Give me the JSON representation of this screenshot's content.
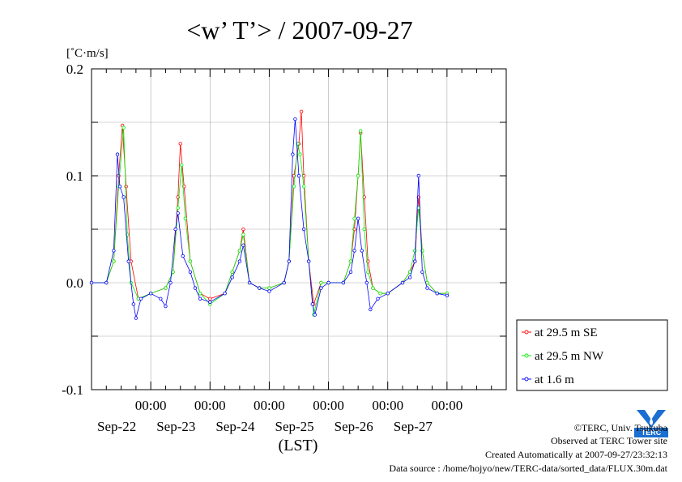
{
  "chart_data": {
    "type": "line",
    "title": "<w’ T’> / 2007-09-27",
    "ylabel": "[˚C·m/s]",
    "xlabel": "(LST)",
    "ylim": [
      -0.1,
      0.2
    ],
    "y_ticks": [
      "0.2",
      "0.1",
      "0.0",
      "-0.1"
    ],
    "x_range": [
      "2007-09-21T00:00",
      "2007-09-28T00:00"
    ],
    "x_tick_time_label": "00:00",
    "x_day_labels": [
      "Sep-22",
      "Sep-23",
      "Sep-24",
      "Sep-25",
      "Sep-26",
      "Sep-27"
    ],
    "grid": true,
    "legend_position": "right",
    "series": [
      {
        "name": "at 29.5 m SE",
        "color": "#ff0000",
        "points": [
          [
            "2007-09-21T00:00",
            0.0
          ],
          [
            "2007-09-21T06:00",
            0.0
          ],
          [
            "2007-09-21T09:00",
            0.02
          ],
          [
            "2007-09-21T11:00",
            0.1
          ],
          [
            "2007-09-21T12:30",
            0.147
          ],
          [
            "2007-09-21T14:00",
            0.09
          ],
          [
            "2007-09-21T16:00",
            0.02
          ],
          [
            "2007-09-21T19:00",
            -0.015
          ],
          [
            "2007-09-22T00:00",
            -0.01
          ],
          [
            "2007-09-22T06:00",
            -0.005
          ],
          [
            "2007-09-22T09:00",
            0.01
          ],
          [
            "2007-09-22T11:00",
            0.08
          ],
          [
            "2007-09-22T12:00",
            0.13
          ],
          [
            "2007-09-22T13:30",
            0.09
          ],
          [
            "2007-09-22T16:00",
            0.02
          ],
          [
            "2007-09-22T20:00",
            -0.01
          ],
          [
            "2007-09-23T00:00",
            -0.015
          ],
          [
            "2007-09-23T06:00",
            -0.01
          ],
          [
            "2007-09-23T09:00",
            0.01
          ],
          [
            "2007-09-23T12:00",
            0.03
          ],
          [
            "2007-09-23T13:30",
            0.05
          ],
          [
            "2007-09-23T16:00",
            0.0
          ],
          [
            "2007-09-23T20:00",
            -0.005
          ],
          [
            "2007-09-24T00:00",
            -0.005
          ],
          [
            "2007-09-24T06:00",
            0.0
          ],
          [
            "2007-09-24T08:00",
            0.02
          ],
          [
            "2007-09-24T10:00",
            0.1
          ],
          [
            "2007-09-24T12:00",
            0.13
          ],
          [
            "2007-09-24T13:00",
            0.16
          ],
          [
            "2007-09-24T14:00",
            0.1
          ],
          [
            "2007-09-24T16:00",
            0.02
          ],
          [
            "2007-09-24T18:00",
            -0.02
          ],
          [
            "2007-09-24T21:00",
            0.0
          ],
          [
            "2007-09-25T00:00",
            0.0
          ],
          [
            "2007-09-25T06:00",
            0.0
          ],
          [
            "2007-09-25T09:00",
            0.02
          ],
          [
            "2007-09-25T10:30",
            0.05
          ],
          [
            "2007-09-25T12:00",
            0.1
          ],
          [
            "2007-09-25T13:00",
            0.14
          ],
          [
            "2007-09-25T14:30",
            0.08
          ],
          [
            "2007-09-25T16:00",
            0.02
          ],
          [
            "2007-09-25T18:00",
            -0.005
          ],
          [
            "2007-09-25T21:00",
            -0.01
          ],
          [
            "2007-09-26T00:00",
            -0.01
          ],
          [
            "2007-09-26T06:00",
            0.0
          ],
          [
            "2007-09-26T09:00",
            0.01
          ],
          [
            "2007-09-26T11:00",
            0.02
          ],
          [
            "2007-09-26T12:30",
            0.08
          ],
          [
            "2007-09-26T14:00",
            0.03
          ],
          [
            "2007-09-26T16:00",
            0.0
          ],
          [
            "2007-09-26T20:00",
            -0.01
          ],
          [
            "2007-09-27T00:00",
            -0.01
          ]
        ]
      },
      {
        "name": "at 29.5 m NW",
        "color": "#00ee00",
        "points": [
          [
            "2007-09-21T00:00",
            0.0
          ],
          [
            "2007-09-21T06:00",
            0.0
          ],
          [
            "2007-09-21T09:00",
            0.02
          ],
          [
            "2007-09-21T11:00",
            0.09
          ],
          [
            "2007-09-21T13:00",
            0.145
          ],
          [
            "2007-09-21T14:30",
            0.045
          ],
          [
            "2007-09-21T16:00",
            0.0
          ],
          [
            "2007-09-21T19:00",
            -0.015
          ],
          [
            "2007-09-22T00:00",
            -0.01
          ],
          [
            "2007-09-22T06:00",
            -0.005
          ],
          [
            "2007-09-22T09:00",
            0.01
          ],
          [
            "2007-09-22T11:00",
            0.07
          ],
          [
            "2007-09-22T12:30",
            0.11
          ],
          [
            "2007-09-22T14:00",
            0.06
          ],
          [
            "2007-09-22T16:00",
            0.02
          ],
          [
            "2007-09-22T20:00",
            -0.01
          ],
          [
            "2007-09-23T00:00",
            -0.02
          ],
          [
            "2007-09-23T06:00",
            -0.01
          ],
          [
            "2007-09-23T09:00",
            0.01
          ],
          [
            "2007-09-23T12:00",
            0.03
          ],
          [
            "2007-09-23T13:30",
            0.045
          ],
          [
            "2007-09-23T16:00",
            0.0
          ],
          [
            "2007-09-23T20:00",
            -0.005
          ],
          [
            "2007-09-24T00:00",
            -0.005
          ],
          [
            "2007-09-24T06:00",
            0.0
          ],
          [
            "2007-09-24T08:00",
            0.02
          ],
          [
            "2007-09-24T10:00",
            0.09
          ],
          [
            "2007-09-24T11:30",
            0.13
          ],
          [
            "2007-09-24T12:30",
            0.12
          ],
          [
            "2007-09-24T14:00",
            0.09
          ],
          [
            "2007-09-24T16:00",
            0.02
          ],
          [
            "2007-09-24T18:00",
            -0.03
          ],
          [
            "2007-09-24T21:00",
            0.0
          ],
          [
            "2007-09-25T00:00",
            0.0
          ],
          [
            "2007-09-25T06:00",
            0.0
          ],
          [
            "2007-09-25T09:00",
            0.02
          ],
          [
            "2007-09-25T10:30",
            0.06
          ],
          [
            "2007-09-25T12:00",
            0.1
          ],
          [
            "2007-09-25T13:00",
            0.142
          ],
          [
            "2007-09-25T14:30",
            0.05
          ],
          [
            "2007-09-25T16:00",
            0.01
          ],
          [
            "2007-09-25T18:00",
            -0.005
          ],
          [
            "2007-09-25T21:00",
            -0.01
          ],
          [
            "2007-09-26T00:00",
            -0.01
          ],
          [
            "2007-09-26T06:00",
            0.0
          ],
          [
            "2007-09-26T09:00",
            0.01
          ],
          [
            "2007-09-26T11:00",
            0.03
          ],
          [
            "2007-09-26T12:30",
            0.07
          ],
          [
            "2007-09-26T14:00",
            0.03
          ],
          [
            "2007-09-26T16:00",
            0.0
          ],
          [
            "2007-09-26T20:00",
            -0.01
          ],
          [
            "2007-09-27T00:00",
            -0.01
          ]
        ]
      },
      {
        "name": "at 1.6 m",
        "color": "#0000ff",
        "points": [
          [
            "2007-09-21T00:00",
            0.0
          ],
          [
            "2007-09-21T06:00",
            0.0
          ],
          [
            "2007-09-21T09:00",
            0.03
          ],
          [
            "2007-09-21T10:30",
            0.12
          ],
          [
            "2007-09-21T11:30",
            0.09
          ],
          [
            "2007-09-21T13:00",
            0.08
          ],
          [
            "2007-09-21T15:00",
            0.02
          ],
          [
            "2007-09-21T17:00",
            -0.02
          ],
          [
            "2007-09-21T18:00",
            -0.033
          ],
          [
            "2007-09-21T20:00",
            -0.015
          ],
          [
            "2007-09-22T00:00",
            -0.01
          ],
          [
            "2007-09-22T04:00",
            -0.015
          ],
          [
            "2007-09-22T06:00",
            -0.022
          ],
          [
            "2007-09-22T08:00",
            0.0
          ],
          [
            "2007-09-22T10:00",
            0.05
          ],
          [
            "2007-09-22T11:00",
            0.065
          ],
          [
            "2007-09-22T13:00",
            0.025
          ],
          [
            "2007-09-22T16:00",
            0.01
          ],
          [
            "2007-09-22T18:00",
            -0.005
          ],
          [
            "2007-09-22T20:00",
            -0.015
          ],
          [
            "2007-09-23T00:00",
            -0.018
          ],
          [
            "2007-09-23T06:00",
            -0.01
          ],
          [
            "2007-09-23T09:00",
            0.005
          ],
          [
            "2007-09-23T12:00",
            0.02
          ],
          [
            "2007-09-23T13:30",
            0.035
          ],
          [
            "2007-09-23T16:00",
            0.0
          ],
          [
            "2007-09-23T20:00",
            -0.005
          ],
          [
            "2007-09-24T00:00",
            -0.008
          ],
          [
            "2007-09-24T06:00",
            0.0
          ],
          [
            "2007-09-24T08:00",
            0.02
          ],
          [
            "2007-09-24T09:30",
            0.12
          ],
          [
            "2007-09-24T10:30",
            0.153
          ],
          [
            "2007-09-24T12:00",
            0.1
          ],
          [
            "2007-09-24T14:00",
            0.05
          ],
          [
            "2007-09-24T16:00",
            0.02
          ],
          [
            "2007-09-24T17:30",
            -0.02
          ],
          [
            "2007-09-24T18:30",
            -0.03
          ],
          [
            "2007-09-24T21:00",
            -0.005
          ],
          [
            "2007-09-25T00:00",
            0.0
          ],
          [
            "2007-09-25T06:00",
            0.0
          ],
          [
            "2007-09-25T09:00",
            0.01
          ],
          [
            "2007-09-25T10:30",
            0.03
          ],
          [
            "2007-09-25T12:00",
            0.06
          ],
          [
            "2007-09-25T13:30",
            0.03
          ],
          [
            "2007-09-25T15:30",
            0.0
          ],
          [
            "2007-09-25T17:00",
            -0.025
          ],
          [
            "2007-09-25T20:00",
            -0.015
          ],
          [
            "2007-09-26T00:00",
            -0.01
          ],
          [
            "2007-09-26T06:00",
            0.0
          ],
          [
            "2007-09-26T09:00",
            0.005
          ],
          [
            "2007-09-26T11:00",
            0.02
          ],
          [
            "2007-09-26T12:30",
            0.1
          ],
          [
            "2007-09-26T14:00",
            0.01
          ],
          [
            "2007-09-26T16:00",
            -0.005
          ],
          [
            "2007-09-26T20:00",
            -0.01
          ],
          [
            "2007-09-27T00:00",
            -0.012
          ]
        ]
      }
    ]
  },
  "footer": {
    "copyright": "©TERC, Univ. Tsukuba",
    "observed": "Observed at TERC Tower site",
    "created": "Created Automatically at 2007-09-27/23:32:13",
    "source": "Data source : /home/hojyo/new/TERC-data/sorted_data/FLUX.30m.dat"
  },
  "logo": {
    "text": "TERC",
    "color": "#1a6fd0"
  }
}
